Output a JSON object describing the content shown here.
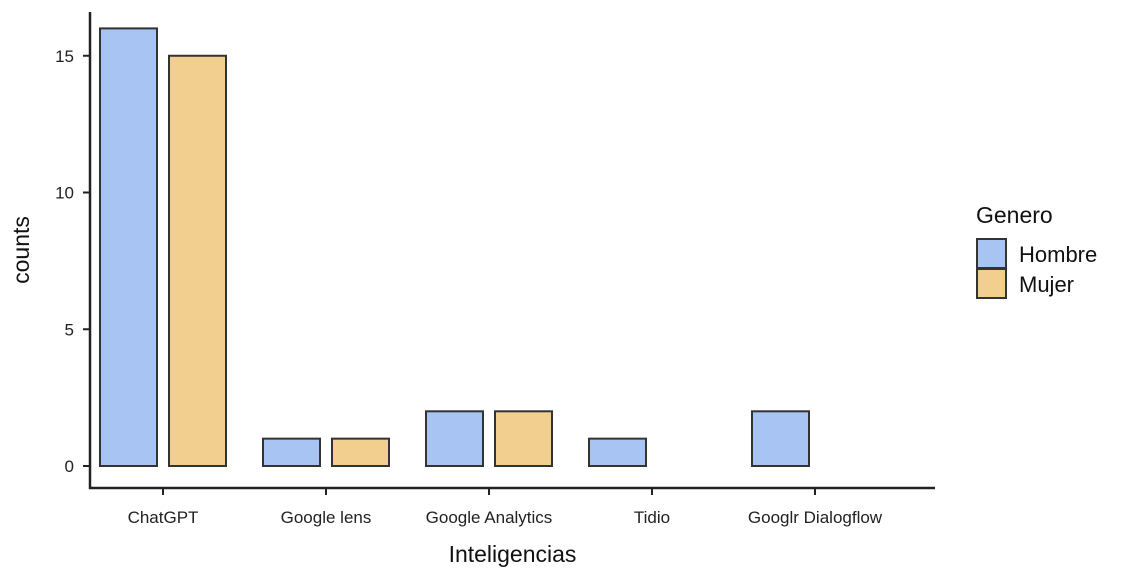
{
  "chart_data": {
    "type": "bar",
    "title": "",
    "xlabel": "Inteligencias",
    "ylabel": "counts",
    "categories": [
      "ChatGPT",
      "Google lens",
      "Google Analytics",
      "Tidio",
      "Googlr Dialogflow"
    ],
    "series": [
      {
        "name": "Hombre",
        "values": [
          16,
          1,
          2,
          1,
          2
        ],
        "color": "#A7C4F2"
      },
      {
        "name": "Mujer",
        "values": [
          15,
          1,
          2,
          0,
          0
        ],
        "color": "#F2CF8E"
      }
    ],
    "yticks": [
      0,
      5,
      10,
      15
    ],
    "ylim": [
      0,
      16.6
    ],
    "grid": false,
    "legend": {
      "title": "Genero",
      "position": "right"
    },
    "bar_edge_color": "#333333"
  }
}
